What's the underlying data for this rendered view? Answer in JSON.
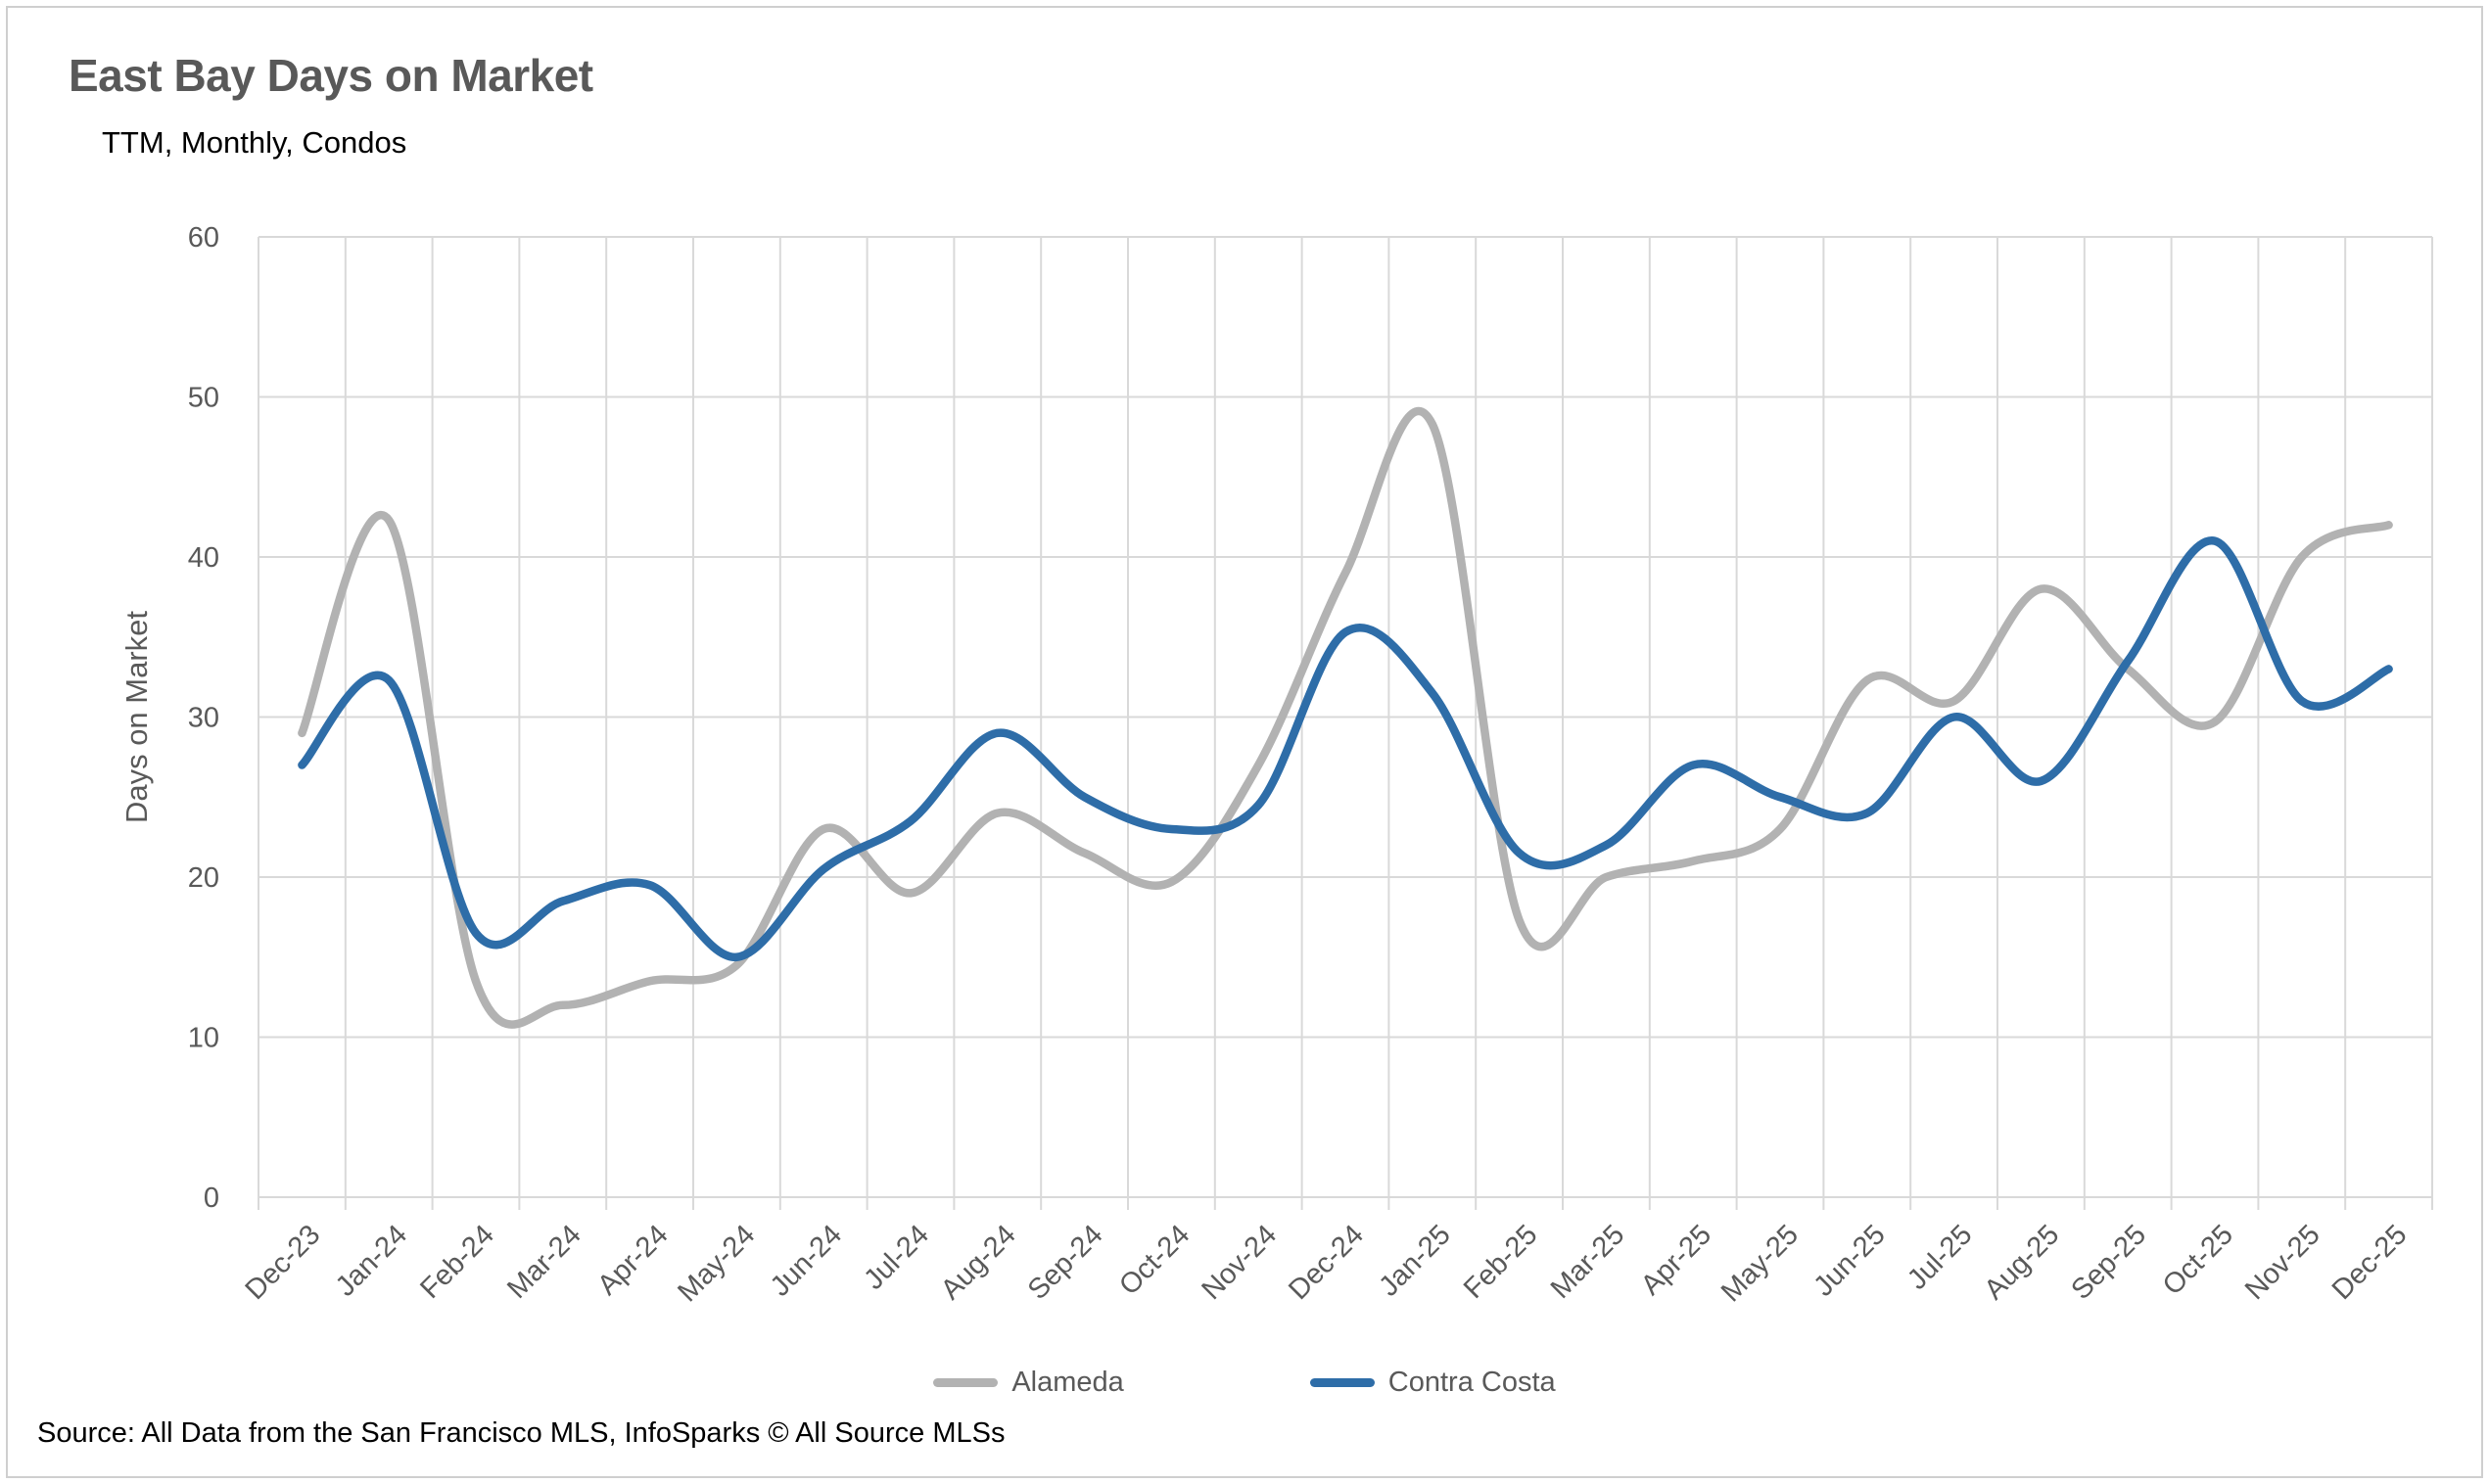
{
  "header": {
    "title": "East Bay Days on Market",
    "subtitle": "TTM, Monthly, Condos"
  },
  "source_note": "Source: All Data from the San Francisco MLS, InfoSparks © All Source MLSs",
  "colors": {
    "alameda_line": "#b2b2b2",
    "contra_costa_line": "#2e6da8",
    "gridline": "#d9d9d9",
    "axis_text": "#595959",
    "title_text": "#595959"
  },
  "chart_data": {
    "type": "line",
    "title": "East Bay Days on Market",
    "subtitle": "TTM, Monthly, Condos",
    "xlabel": "",
    "ylabel": "Days on Market",
    "ylim": [
      0,
      60
    ],
    "ytick_step": 10,
    "grid": true,
    "smooth": true,
    "legend_position": "bottom",
    "categories": [
      "Dec-23",
      "Jan-24",
      "Feb-24",
      "Mar-24",
      "Apr-24",
      "May-24",
      "Jun-24",
      "Jul-24",
      "Aug-24",
      "Sep-24",
      "Oct-24",
      "Nov-24",
      "Dec-24",
      "Jan-25",
      "Feb-25",
      "Mar-25",
      "Apr-25",
      "May-25",
      "Jun-25",
      "Jul-25",
      "Aug-25",
      "Sep-25",
      "Oct-25",
      "Nov-25",
      "Dec-25"
    ],
    "series": [
      {
        "name": "Alameda",
        "color": "#b2b2b2",
        "values": [
          29,
          42.3,
          13.5,
          12,
          13.5,
          14.5,
          23,
          19,
          24,
          21.5,
          19.7,
          27,
          39,
          48.3,
          17.3,
          20,
          21,
          23,
          32.3,
          31,
          38,
          33,
          29.7,
          40,
          42
        ]
      },
      {
        "name": "Contra Costa",
        "color": "#2e6da8",
        "values": [
          27,
          32.3,
          16.5,
          18.5,
          19.5,
          15,
          20.5,
          23.5,
          29,
          25,
          23,
          24.5,
          35.3,
          31.5,
          21.5,
          22,
          27,
          25,
          24,
          30,
          26,
          33.5,
          41,
          31,
          33
        ]
      }
    ]
  }
}
